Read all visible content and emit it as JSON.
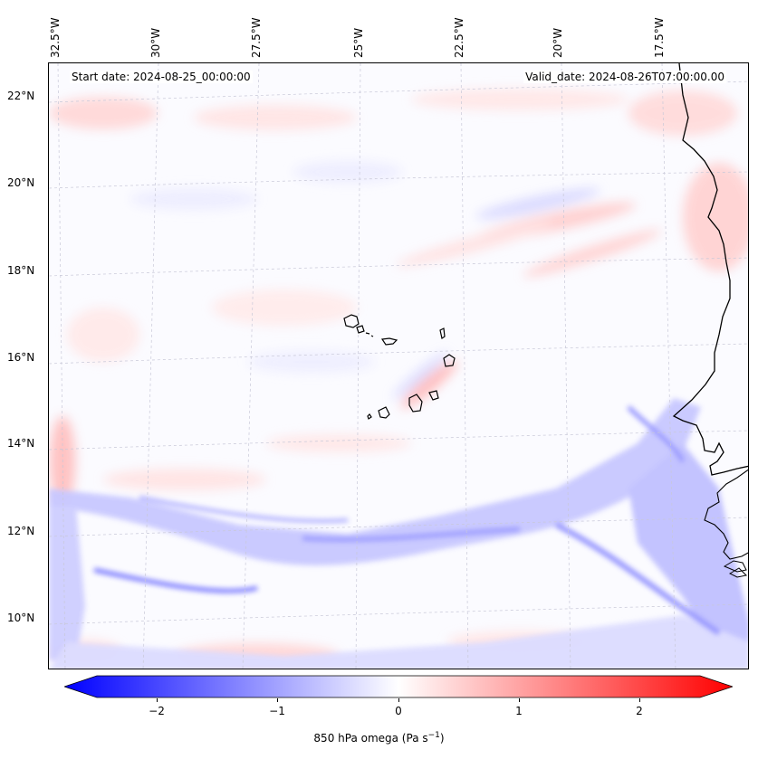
{
  "header": {
    "start_date": "Start date: 2024-08-25_00:00:00",
    "valid_date": "Valid_date: 2024-08-26T07:00:00.00"
  },
  "axes": {
    "longitude_labels": [
      "32.5°W",
      "30°W",
      "27.5°W",
      "25°W",
      "22.5°W",
      "20°W",
      "17.5°W"
    ],
    "latitude_labels": [
      "22°N",
      "20°N",
      "18°N",
      "16°N",
      "14°N",
      "12°N",
      "10°N"
    ]
  },
  "colorbar": {
    "ticks": [
      "−2",
      "−1",
      "0",
      "1",
      "2"
    ],
    "label_main": "850 hPa omega (Pa s",
    "label_sup": "−1",
    "label_close": ")",
    "colors": {
      "neg": "#0000ff",
      "zero": "#ffffff",
      "pos": "#ff0000"
    }
  },
  "map": {
    "variable": "850 hPa omega",
    "islands": "Cape Verde islands",
    "coast": "West African coastline"
  }
}
